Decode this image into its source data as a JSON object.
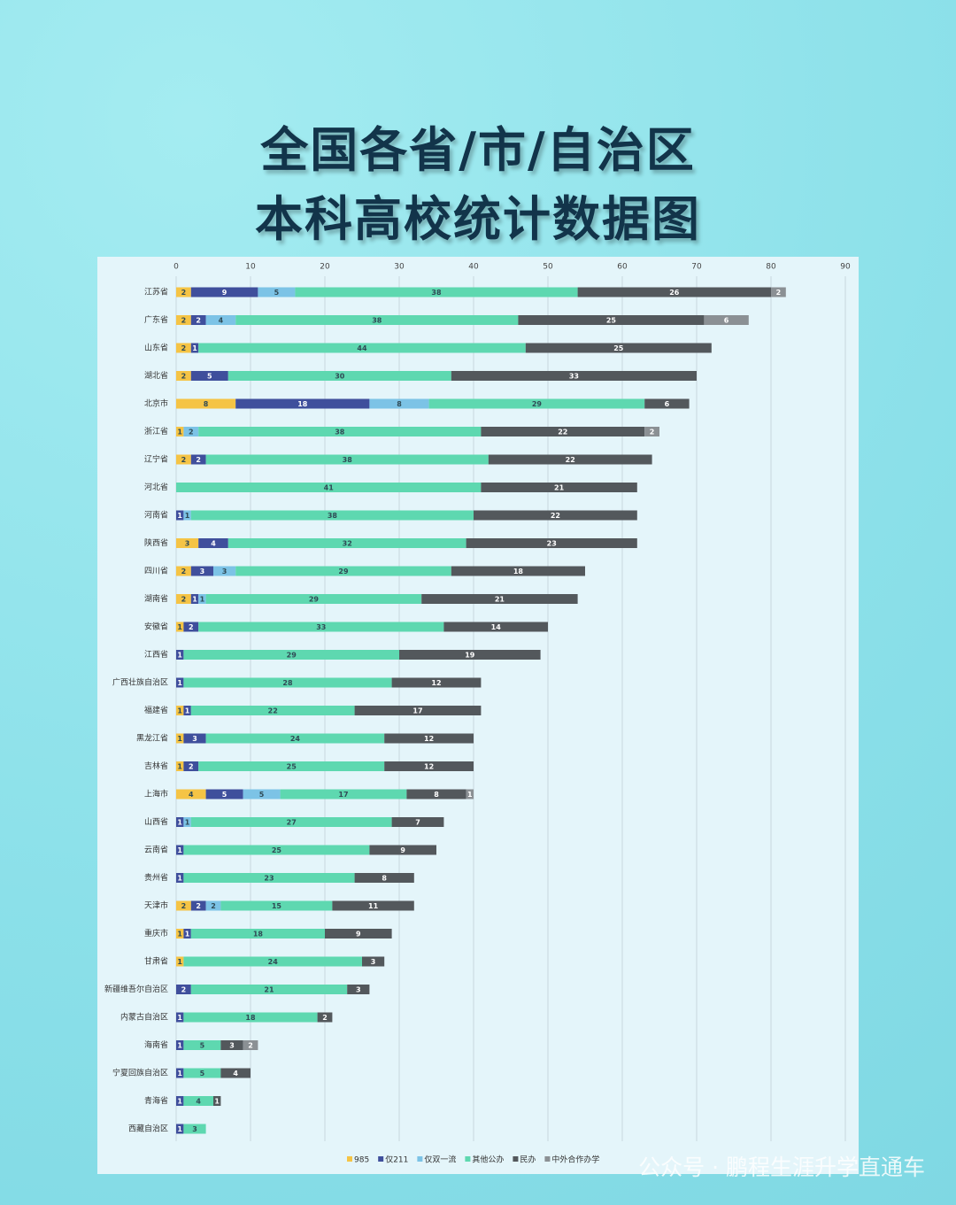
{
  "chart_data": {
    "type": "stacked-bar-horizontal",
    "title": "全国各省/市/自治区",
    "subtitle": "本科高校统计数据图",
    "watermark": "公众号 · 鹏程生涯升学直通车",
    "categories": [
      "江苏省",
      "广东省",
      "山东省",
      "湖北省",
      "北京市",
      "浙江省",
      "辽宁省",
      "河北省",
      "河南省",
      "陕西省",
      "四川省",
      "湖南省",
      "安徽省",
      "江西省",
      "广西壮族自治区",
      "福建省",
      "黑龙江省",
      "吉林省",
      "上海市",
      "山西省",
      "云南省",
      "贵州省",
      "天津市",
      "重庆市",
      "甘肃省",
      "新疆维吾尔自治区",
      "内蒙古自治区",
      "海南省",
      "宁夏回族自治区",
      "青海省",
      "西藏自治区"
    ],
    "series": [
      {
        "name": "985",
        "color": "#f5c445",
        "values": [
          2,
          2,
          2,
          2,
          8,
          1,
          2,
          null,
          null,
          3,
          2,
          2,
          1,
          null,
          null,
          1,
          1,
          1,
          4,
          null,
          null,
          null,
          2,
          1,
          1,
          null,
          null,
          null,
          null,
          null,
          null
        ]
      },
      {
        "name": "仅211",
        "color": "#3f4f9c",
        "values": [
          9,
          2,
          1,
          5,
          18,
          null,
          2,
          null,
          1,
          4,
          3,
          1,
          2,
          1,
          1,
          1,
          3,
          2,
          5,
          1,
          1,
          1,
          2,
          1,
          null,
          2,
          1,
          1,
          1,
          1,
          1
        ]
      },
      {
        "name": "仅双一流",
        "color": "#7cc3e6",
        "values": [
          5,
          4,
          null,
          null,
          8,
          2,
          null,
          null,
          1,
          null,
          3,
          1,
          null,
          null,
          null,
          null,
          null,
          null,
          5,
          1,
          null,
          null,
          2,
          null,
          null,
          null,
          null,
          null,
          null,
          null,
          null
        ]
      },
      {
        "name": "其他公办",
        "color": "#5ed8b0",
        "values": [
          38,
          38,
          44,
          30,
          29,
          38,
          38,
          41,
          38,
          32,
          29,
          29,
          33,
          29,
          28,
          22,
          24,
          25,
          17,
          27,
          25,
          23,
          15,
          18,
          24,
          21,
          18,
          5,
          5,
          4,
          3
        ]
      },
      {
        "name": "民办",
        "color": "#53585c",
        "values": [
          26,
          25,
          25,
          33,
          6,
          22,
          22,
          21,
          22,
          23,
          18,
          21,
          14,
          19,
          12,
          17,
          12,
          12,
          8,
          7,
          9,
          8,
          11,
          9,
          3,
          3,
          2,
          3,
          4,
          1,
          null
        ]
      },
      {
        "name": "中外合作办学",
        "color": "#8b9094",
        "values": [
          2,
          6,
          null,
          null,
          null,
          2,
          null,
          null,
          null,
          null,
          null,
          null,
          null,
          null,
          null,
          null,
          null,
          null,
          1,
          null,
          null,
          null,
          null,
          null,
          null,
          null,
          null,
          2,
          null,
          null,
          null
        ]
      }
    ],
    "xlim": [
      0,
      90
    ],
    "xticks": [
      0,
      10,
      20,
      30,
      40,
      50,
      60,
      70,
      80,
      90
    ],
    "grid": true
  }
}
